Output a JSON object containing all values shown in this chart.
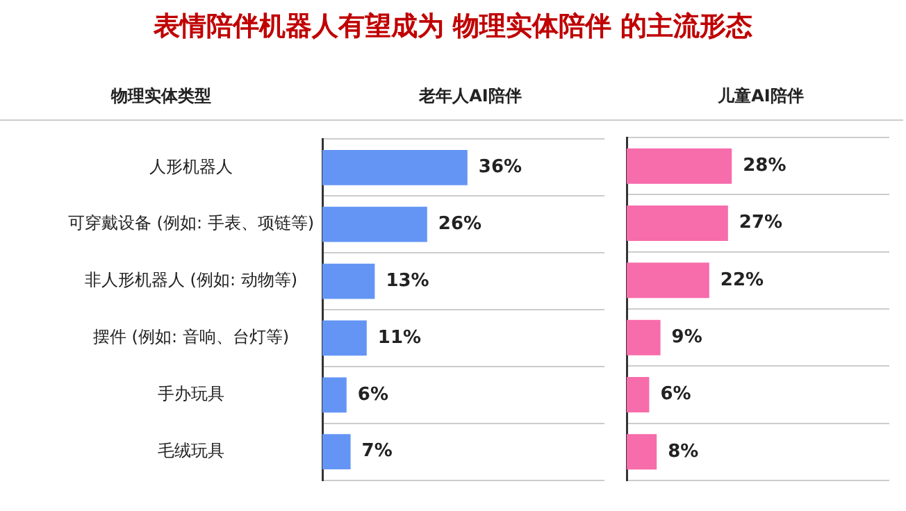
{
  "chart_data": [
    {
      "type": "bar",
      "orientation": "horizontal",
      "title": "表情陪伴机器人有望成为 物理实体陪伴 的主流形态",
      "ylabel": "物理实体类型",
      "categories": [
        "人形机器人",
        "可穿戴设备 (例如: 手表、项链等)",
        "非人形机器人 (例如: 动物等)",
        "摆件 (例如: 音响、台灯等)",
        "手办玩具",
        "毛绒玩具"
      ],
      "series": [
        {
          "name": "老年人AI陪伴",
          "color": "#6495f5",
          "values": [
            36,
            26,
            13,
            11,
            6,
            7
          ],
          "value_labels": [
            "36%",
            "26%",
            "13%",
            "11%",
            "6%",
            "7%"
          ]
        }
      ],
      "xlim": [
        0,
        70
      ],
      "grid": "y"
    },
    {
      "type": "bar",
      "orientation": "horizontal",
      "categories": [
        null,
        null,
        null,
        null,
        null,
        null
      ],
      "series": [
        {
          "name": "儿童AI陪伴",
          "color": "#f76cab",
          "values": [
            28,
            27,
            22,
            9,
            6,
            8
          ],
          "value_labels": [
            "28%",
            "27%",
            "22%",
            "9%",
            "6%",
            "8%"
          ]
        }
      ],
      "xlim": [
        0,
        70
      ],
      "grid": "y",
      "tick_labels": false
    }
  ]
}
